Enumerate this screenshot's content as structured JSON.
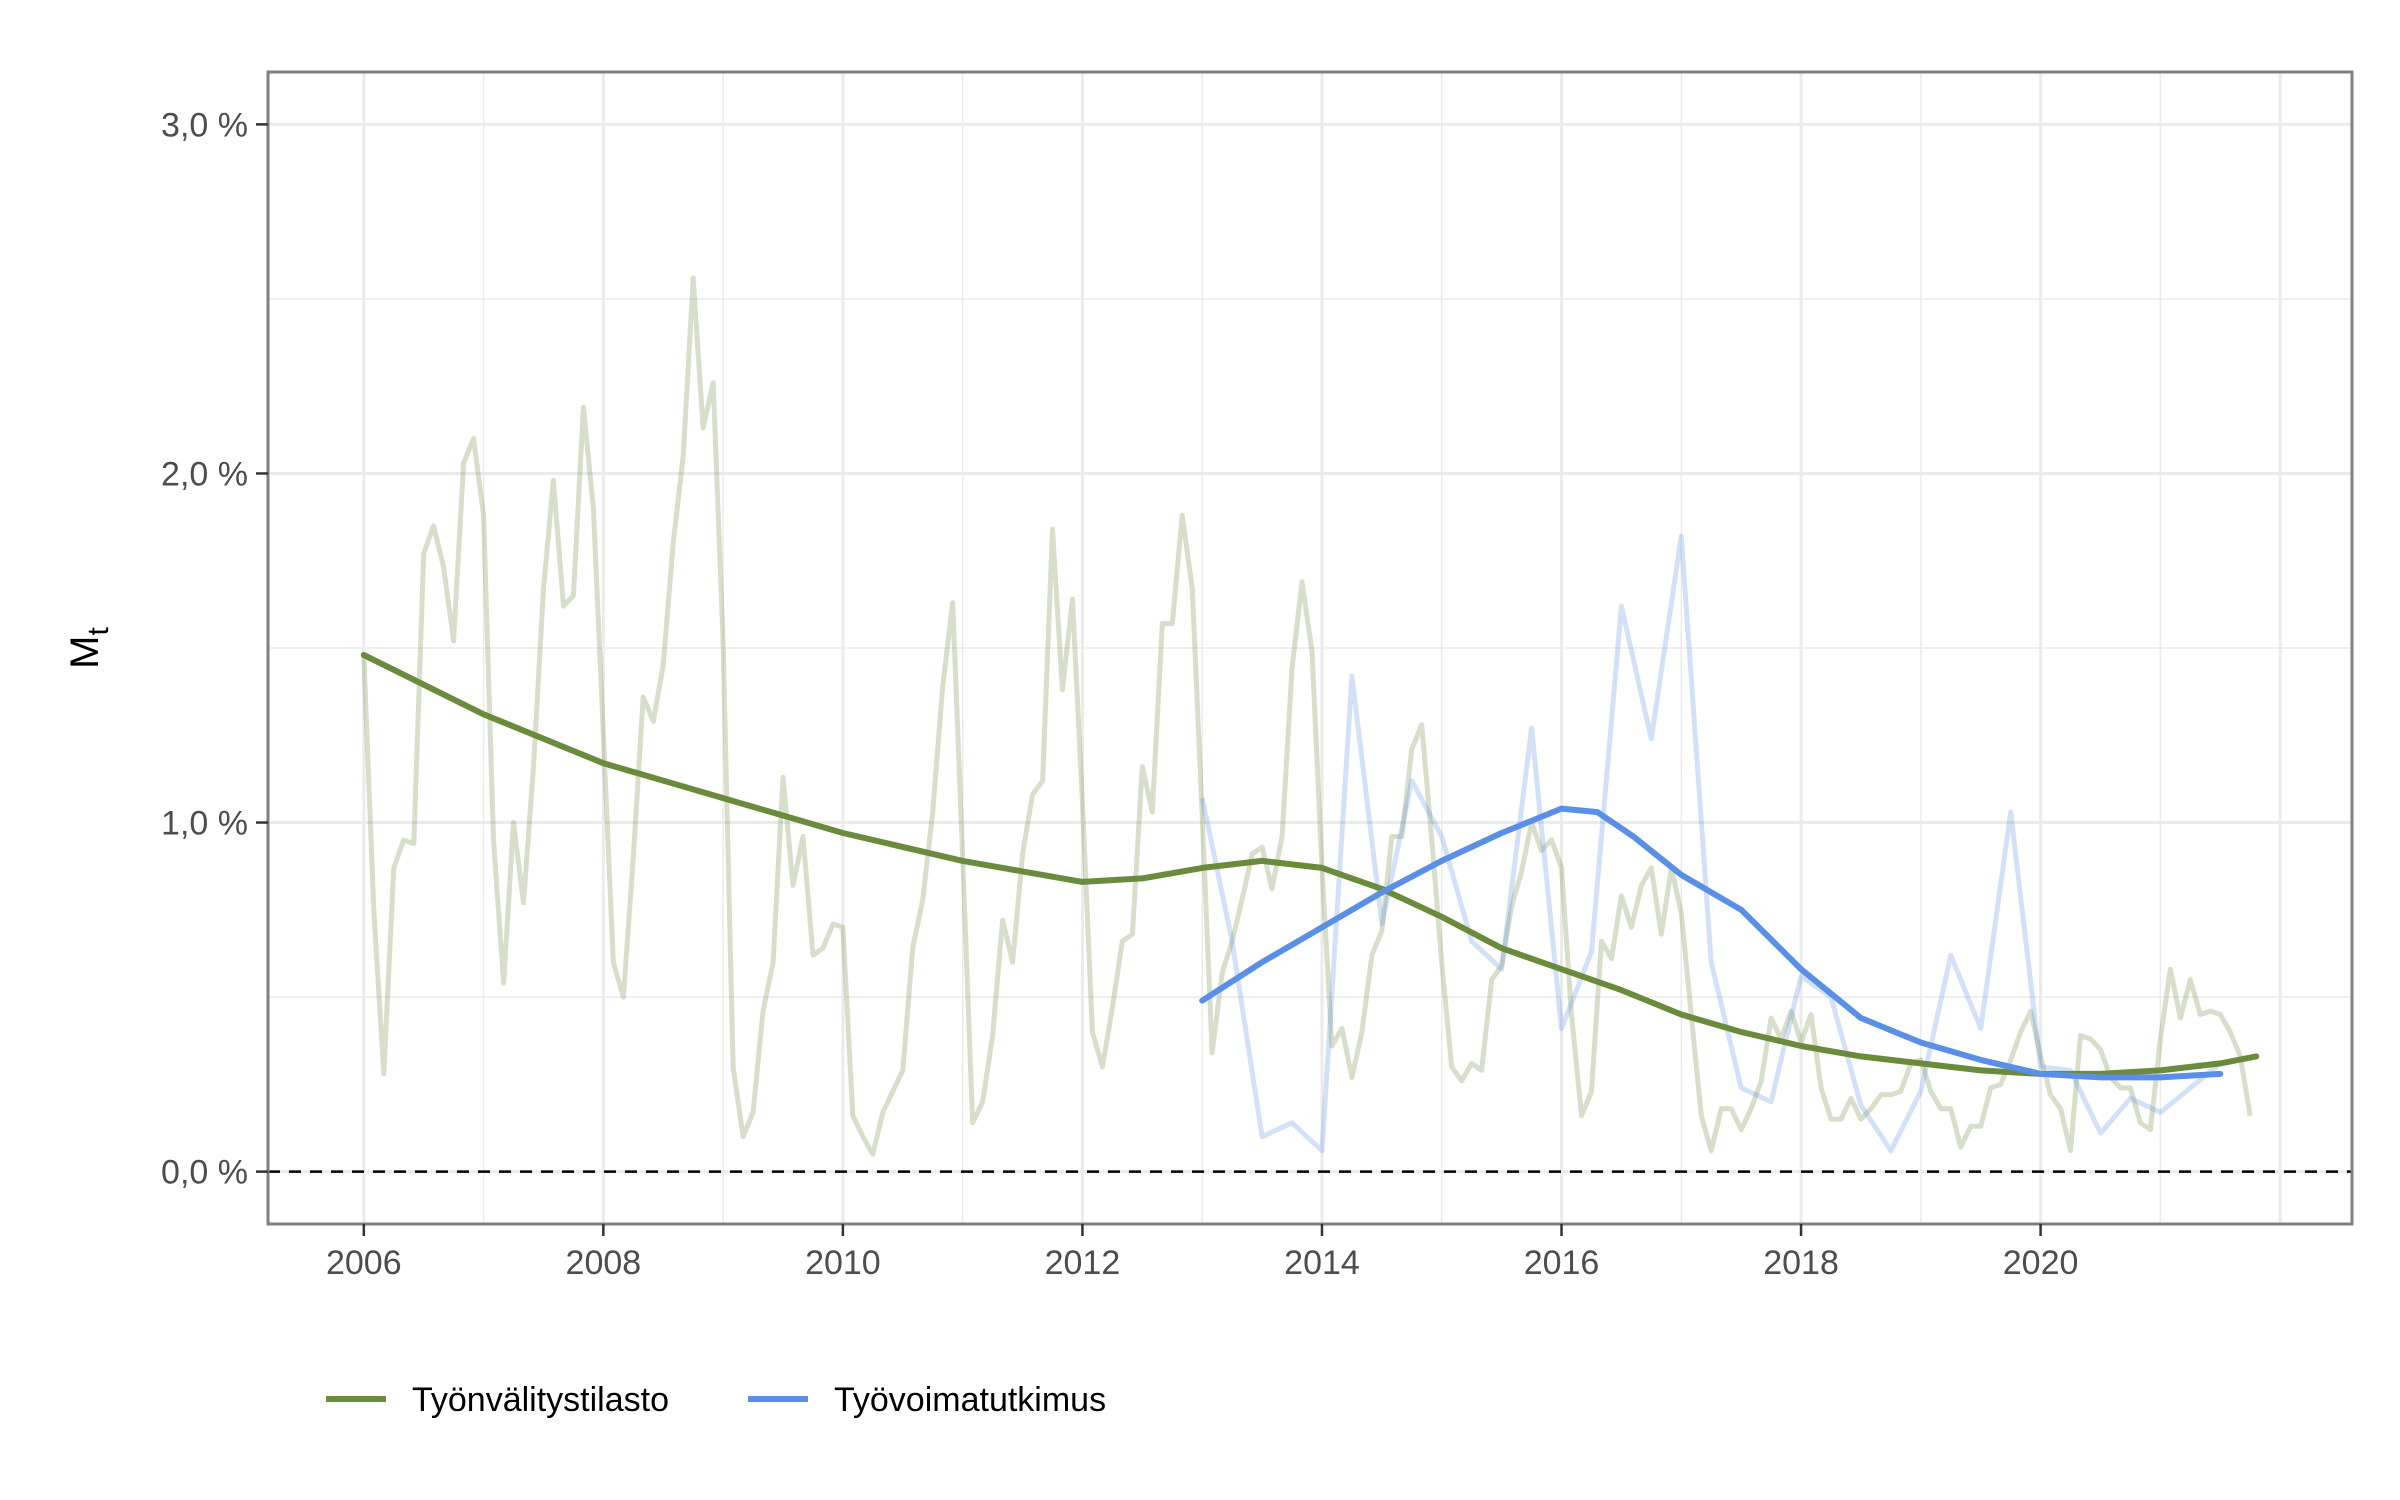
{
  "chart_data": {
    "type": "line",
    "ylabel": "M",
    "ylabel_subscript": "t",
    "xlabel": "",
    "x_ticks": [
      "2006",
      "2008",
      "2010",
      "2012",
      "2014",
      "2016",
      "2018",
      "2020"
    ],
    "x_tick_values": [
      2006,
      2008,
      2010,
      2012,
      2014,
      2016,
      2018,
      2020
    ],
    "y_ticks": [
      "0,0 %",
      "1,0 %",
      "2,0 %",
      "3,0 %"
    ],
    "y_tick_values": [
      0,
      1,
      2,
      3
    ],
    "xlim": [
      2005.2,
      2022.6
    ],
    "ylim": [
      -0.15,
      3.15
    ],
    "grid": true,
    "reference_line": {
      "y": 0,
      "style": "dashed",
      "color": "#000000"
    },
    "legend_position": "bottom-left",
    "colors": {
      "tyonvalitystilasto": "#6a8a3c",
      "tyovoimatutkimus": "#5b8fe6"
    },
    "series": [
      {
        "name": "Työnvälitystilasto",
        "kind": "trend",
        "color": "#6a8a3c",
        "x": [
          2006.0,
          2007.0,
          2008.0,
          2009.0,
          2010.0,
          2011.0,
          2011.5,
          2012.0,
          2012.5,
          2013.0,
          2013.5,
          2014.0,
          2014.5,
          2015.0,
          2015.5,
          2016.0,
          2016.5,
          2017.0,
          2017.5,
          2018.0,
          2018.5,
          2019.0,
          2019.5,
          2020.0,
          2020.5,
          2021.0,
          2021.5,
          2021.8
        ],
        "y": [
          1.48,
          1.31,
          1.17,
          1.07,
          0.97,
          0.89,
          0.86,
          0.83,
          0.84,
          0.87,
          0.89,
          0.87,
          0.81,
          0.73,
          0.64,
          0.58,
          0.52,
          0.45,
          0.4,
          0.36,
          0.33,
          0.31,
          0.29,
          0.28,
          0.28,
          0.29,
          0.31,
          0.33
        ]
      },
      {
        "name": "Työvoimatutkimus",
        "kind": "trend",
        "color": "#5b8fe6",
        "x": [
          2013.0,
          2013.5,
          2014.0,
          2014.5,
          2015.0,
          2015.5,
          2016.0,
          2016.3,
          2016.6,
          2017.0,
          2017.5,
          2018.0,
          2018.5,
          2019.0,
          2019.5,
          2020.0,
          2020.5,
          2021.0,
          2021.5
        ],
        "y": [
          0.49,
          0.6,
          0.7,
          0.8,
          0.89,
          0.97,
          1.04,
          1.03,
          0.96,
          0.85,
          0.75,
          0.58,
          0.44,
          0.37,
          0.32,
          0.28,
          0.27,
          0.27,
          0.28
        ]
      },
      {
        "name": "Työnvälitystilasto",
        "kind": "raw",
        "color": "#6a8a3c",
        "x": [
          2006.0,
          2006.083,
          2006.167,
          2006.25,
          2006.333,
          2006.417,
          2006.5,
          2006.583,
          2006.667,
          2006.75,
          2006.833,
          2006.917,
          2007.0,
          2007.083,
          2007.167,
          2007.25,
          2007.333,
          2007.417,
          2007.5,
          2007.583,
          2007.667,
          2007.75,
          2007.833,
          2007.917,
          2008.0,
          2008.083,
          2008.167,
          2008.25,
          2008.333,
          2008.417,
          2008.5,
          2008.583,
          2008.667,
          2008.75,
          2008.833,
          2008.917,
          2009.0,
          2009.083,
          2009.167,
          2009.25,
          2009.333,
          2009.417,
          2009.5,
          2009.583,
          2009.667,
          2009.75,
          2009.833,
          2009.917,
          2010.0,
          2010.083,
          2010.167,
          2010.25,
          2010.333,
          2010.417,
          2010.5,
          2010.583,
          2010.667,
          2010.75,
          2010.833,
          2010.917,
          2011.0,
          2011.083,
          2011.167,
          2011.25,
          2011.333,
          2011.417,
          2011.5,
          2011.583,
          2011.667,
          2011.75,
          2011.833,
          2011.917,
          2012.0,
          2012.083,
          2012.167,
          2012.25,
          2012.333,
          2012.417,
          2012.5,
          2012.583,
          2012.667,
          2012.75,
          2012.833,
          2012.917,
          2013.0,
          2013.083,
          2013.167,
          2013.25,
          2013.333,
          2013.417,
          2013.5,
          2013.583,
          2013.667,
          2013.75,
          2013.833,
          2013.917,
          2014.0,
          2014.083,
          2014.167,
          2014.25,
          2014.333,
          2014.417,
          2014.5,
          2014.583,
          2014.667,
          2014.75,
          2014.833,
          2014.917,
          2015.0,
          2015.083,
          2015.167,
          2015.25,
          2015.333,
          2015.417,
          2015.5,
          2015.583,
          2015.667,
          2015.75,
          2015.833,
          2015.917,
          2016.0,
          2016.083,
          2016.167,
          2016.25,
          2016.333,
          2016.417,
          2016.5,
          2016.583,
          2016.667,
          2016.75,
          2016.833,
          2016.917,
          2017.0,
          2017.083,
          2017.167,
          2017.25,
          2017.333,
          2017.417,
          2017.5,
          2017.583,
          2017.667,
          2017.75,
          2017.833,
          2017.917,
          2018.0,
          2018.083,
          2018.167,
          2018.25,
          2018.333,
          2018.417,
          2018.5,
          2018.583,
          2018.667,
          2018.75,
          2018.833,
          2018.917,
          2019.0,
          2019.083,
          2019.167,
          2019.25,
          2019.333,
          2019.417,
          2019.5,
          2019.583,
          2019.667,
          2019.75,
          2019.833,
          2019.917,
          2020.0,
          2020.083,
          2020.167,
          2020.25,
          2020.333,
          2020.417,
          2020.5,
          2020.583,
          2020.667,
          2020.75,
          2020.833,
          2020.917,
          2021.0,
          2021.083,
          2021.167,
          2021.25,
          2021.333,
          2021.417,
          2021.5,
          2021.583,
          2021.667,
          2021.75
        ],
        "y": [
          1.48,
          0.75,
          0.28,
          0.87,
          0.95,
          0.94,
          1.77,
          1.85,
          1.73,
          1.52,
          2.03,
          2.1,
          1.88,
          0.95,
          0.54,
          1.0,
          0.77,
          1.16,
          1.67,
          1.98,
          1.62,
          1.65,
          2.19,
          1.9,
          1.25,
          0.6,
          0.5,
          0.9,
          1.36,
          1.29,
          1.45,
          1.8,
          2.05,
          2.56,
          2.13,
          2.26,
          1.52,
          0.3,
          0.1,
          0.17,
          0.46,
          0.6,
          1.13,
          0.82,
          0.96,
          0.62,
          0.64,
          0.71,
          0.7,
          0.16,
          0.1,
          0.05,
          0.17,
          0.23,
          0.29,
          0.64,
          0.78,
          1.03,
          1.39,
          1.63,
          0.9,
          0.14,
          0.2,
          0.39,
          0.72,
          0.6,
          0.91,
          1.08,
          1.12,
          1.84,
          1.38,
          1.64,
          1.06,
          0.4,
          0.3,
          0.47,
          0.66,
          0.68,
          1.16,
          1.03,
          1.57,
          1.57,
          1.88,
          1.67,
          1.02,
          0.34,
          0.57,
          0.66,
          0.78,
          0.91,
          0.93,
          0.81,
          0.96,
          1.44,
          1.69,
          1.49,
          0.87,
          0.36,
          0.41,
          0.27,
          0.4,
          0.62,
          0.69,
          0.96,
          0.96,
          1.21,
          1.28,
          0.95,
          0.6,
          0.3,
          0.26,
          0.31,
          0.29,
          0.55,
          0.59,
          0.76,
          0.86,
          1.0,
          0.92,
          0.95,
          0.87,
          0.45,
          0.16,
          0.23,
          0.66,
          0.61,
          0.79,
          0.7,
          0.82,
          0.87,
          0.68,
          0.87,
          0.74,
          0.45,
          0.16,
          0.06,
          0.18,
          0.18,
          0.12,
          0.18,
          0.26,
          0.44,
          0.38,
          0.46,
          0.37,
          0.45,
          0.24,
          0.15,
          0.15,
          0.21,
          0.15,
          0.18,
          0.22,
          0.22,
          0.23,
          0.31,
          0.32,
          0.23,
          0.18,
          0.18,
          0.07,
          0.13,
          0.13,
          0.24,
          0.25,
          0.32,
          0.4,
          0.46,
          0.33,
          0.22,
          0.18,
          0.06,
          0.39,
          0.38,
          0.35,
          0.27,
          0.24,
          0.24,
          0.14,
          0.12,
          0.38,
          0.58,
          0.44,
          0.55,
          0.45,
          0.46,
          0.45,
          0.4,
          0.33,
          0.16
        ]
      },
      {
        "name": "Työvoimatutkimus",
        "kind": "raw",
        "color": "#5b8fe6",
        "x": [
          2013.0,
          2013.25,
          2013.5,
          2013.75,
          2014.0,
          2014.25,
          2014.5,
          2014.75,
          2015.0,
          2015.25,
          2015.5,
          2015.75,
          2016.0,
          2016.25,
          2016.5,
          2016.75,
          2017.0,
          2017.25,
          2017.5,
          2017.75,
          2018.0,
          2018.25,
          2018.5,
          2018.75,
          2019.0,
          2019.25,
          2019.5,
          2019.75,
          2020.0,
          2020.25,
          2020.5,
          2020.75,
          2021.0,
          2021.25,
          2021.5
        ],
        "y": [
          1.07,
          0.66,
          0.1,
          0.14,
          0.06,
          1.42,
          0.71,
          1.12,
          0.96,
          0.66,
          0.58,
          1.27,
          0.41,
          0.63,
          1.62,
          1.24,
          1.82,
          0.6,
          0.24,
          0.2,
          0.56,
          0.5,
          0.19,
          0.06,
          0.23,
          0.62,
          0.41,
          1.03,
          0.3,
          0.29,
          0.11,
          0.21,
          0.17,
          0.24,
          0.31
        ]
      }
    ]
  }
}
